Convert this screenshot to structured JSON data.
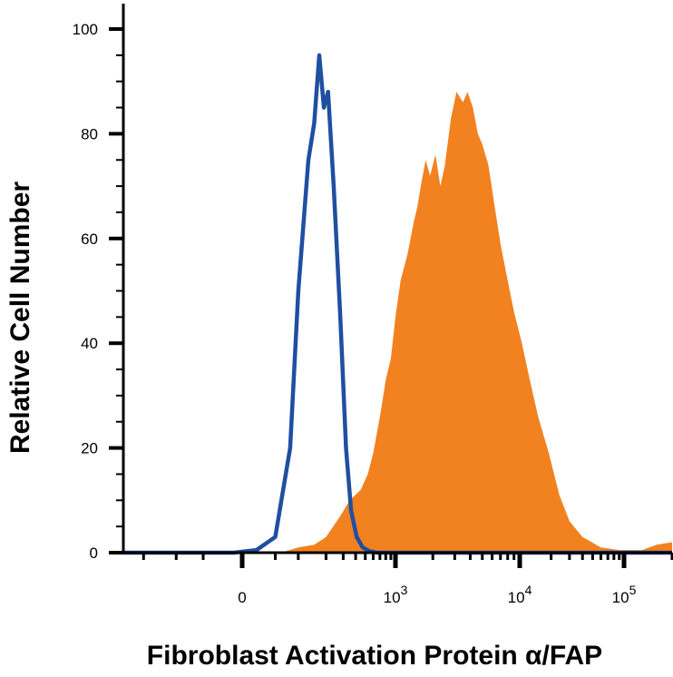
{
  "chart_data": {
    "type": "area",
    "xlabel": "Fibroblast Activation Protein α/FAP",
    "ylabel": "Relative Cell Number",
    "x_scale": "logicle",
    "ylim": [
      0,
      100
    ],
    "grid": false,
    "legend": "none",
    "y_ticks": [
      {
        "value": 0,
        "label": "0"
      },
      {
        "value": 20,
        "label": "20"
      },
      {
        "value": 40,
        "label": "40"
      },
      {
        "value": 60,
        "label": "60"
      },
      {
        "value": 80,
        "label": "80"
      },
      {
        "value": 100,
        "label": "100"
      }
    ],
    "x_ticks": [
      {
        "value": 0,
        "base": "0",
        "exp": ""
      },
      {
        "value": 1000,
        "base": "10",
        "exp": "3"
      },
      {
        "value": 10000,
        "base": "10",
        "exp": "4"
      },
      {
        "value": 100000,
        "base": "10",
        "exp": "5"
      }
    ],
    "series": [
      {
        "style": "outline",
        "color": "#1f4fa0",
        "x": [
          -300,
          -10,
          20,
          50,
          80,
          100,
          130,
          150,
          170,
          190,
          210,
          240,
          280,
          320,
          360,
          410,
          470,
          550,
          650,
          800,
          1200,
          5000,
          100000,
          200000
        ],
        "y": [
          0,
          0,
          0.5,
          3,
          20,
          50,
          75,
          82,
          95,
          85,
          88,
          70,
          45,
          20,
          8,
          3,
          1,
          0.3,
          0,
          0,
          0,
          0,
          0,
          0
        ]
      },
      {
        "style": "filled",
        "color": "#f28120",
        "x": [
          -300,
          60,
          100,
          150,
          200,
          280,
          350,
          450,
          530,
          600,
          700,
          800,
          900,
          1000,
          1100,
          1250,
          1400,
          1500,
          1600,
          1750,
          1900,
          2100,
          2300,
          2500,
          2800,
          3100,
          3500,
          3800,
          4200,
          4600,
          5000,
          5600,
          6300,
          7000,
          8000,
          9000,
          10500,
          12500,
          15000,
          19000,
          24000,
          30000,
          40000,
          60000,
          90000,
          130000,
          160000,
          200000
        ],
        "y": [
          0,
          0,
          1,
          1.5,
          3,
          7,
          10,
          12,
          15,
          19,
          26,
          33,
          37,
          45,
          52,
          57,
          63,
          66,
          70,
          75,
          72,
          76,
          70,
          74,
          83,
          88,
          86,
          88,
          85,
          80,
          78,
          74,
          66,
          59,
          52,
          46,
          40,
          33,
          26,
          19,
          11,
          6,
          3,
          1,
          0.5,
          0.5,
          1.5,
          2
        ]
      }
    ]
  }
}
